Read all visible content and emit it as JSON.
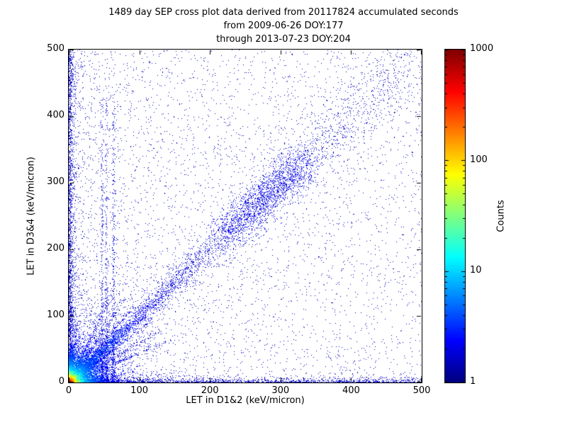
{
  "figure": {
    "title_lines": [
      "1489 day SEP cross plot data derived from 20117824 accumulated seconds",
      "from 2009-06-26 DOY:177",
      "through 2013-07-23 DOY:204"
    ]
  },
  "chart_data": {
    "type": "heatmap",
    "title": "1489 day SEP cross plot data derived from 20117824 accumulated seconds from 2009-06-26 DOY:177 through 2013-07-23 DOY:204",
    "xlabel": "LET in D1&2 (keV/micron)",
    "ylabel": "LET in D3&4 (keV/micron)",
    "xlim": [
      0,
      500
    ],
    "ylim": [
      0,
      500
    ],
    "xticks": [
      "0",
      "100",
      "200",
      "300",
      "400",
      "500"
    ],
    "yticks": [
      "0",
      "100",
      "200",
      "300",
      "400",
      "500"
    ],
    "grid": false,
    "colorbar": {
      "label": "Counts",
      "scale": "log",
      "ticks": [
        "1",
        "10",
        "100",
        "1000"
      ],
      "tick_values": [
        1,
        10,
        100,
        1000
      ],
      "vmin": 1,
      "vmax": 1000,
      "colormap": "jet"
    },
    "point_color_low": "#000080",
    "point_color_high": "#800000",
    "seed": 20117824,
    "features": [
      {
        "kind": "background",
        "n": 3500,
        "x_pow": 1.6
      },
      {
        "kind": "background",
        "n": 900,
        "x_pow": 1.0
      },
      {
        "kind": "left-edge",
        "n": 1600,
        "x_scale": 3,
        "y_pow": 1.3
      },
      {
        "kind": "bottom-edge",
        "n": 1600,
        "y_scale": 3,
        "x_pow": 1.2
      },
      {
        "kind": "diagonal",
        "n": 5000,
        "t_pow": 2.3,
        "spread0": 2,
        "spread_slope": 0.06,
        "v0": 0.05,
        "v_amp": 0.3,
        "v_tau": 60
      },
      {
        "kind": "blob",
        "n": 1500,
        "t_min": 225,
        "t_max": 335,
        "sigma": 15,
        "v": 0.085
      },
      {
        "kind": "rays",
        "n_per": 260,
        "slopes": [
          0.45,
          0.6,
          0.8,
          1.25,
          1.6,
          2.2
        ],
        "r_max": 150,
        "r_pow": 2
      },
      {
        "kind": "streaks",
        "n_per": 380,
        "xs": [
          47,
          53,
          63
        ],
        "sigma": 1.3,
        "y_max": 430,
        "y_pow": 2.6
      },
      {
        "kind": "core",
        "n": 3200,
        "r_tau": 45,
        "v0": 0.05,
        "v_amp": 0.25,
        "v_tau": 40
      },
      {
        "kind": "core",
        "n": 9000,
        "r_tau": 18,
        "v0": 0.08,
        "v_amp": 0.5,
        "v_tau": 25
      },
      {
        "kind": "core",
        "n": 2000,
        "r_tau": 6,
        "v0": 0.15,
        "v_amp": 0.85,
        "v_tau": 16
      }
    ]
  }
}
